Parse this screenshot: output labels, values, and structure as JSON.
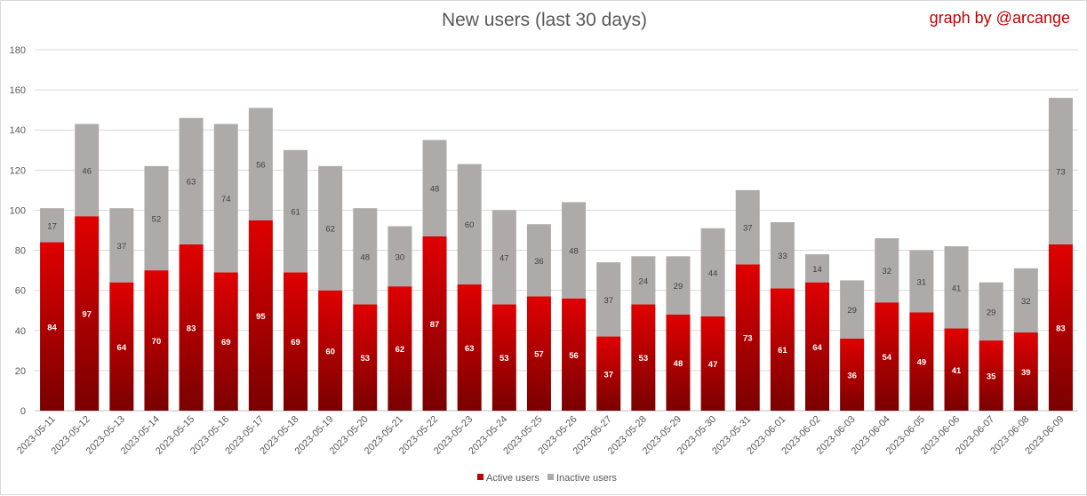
{
  "chart_data": {
    "type": "bar",
    "stacked": true,
    "title": "New users (last 30 days)",
    "credit": "graph by @arcange",
    "xlabel": "",
    "ylabel": "",
    "ylim": [
      0,
      180
    ],
    "yticks": [
      0,
      20,
      40,
      60,
      80,
      100,
      120,
      140,
      160,
      180
    ],
    "grid": true,
    "legend_position": "bottom",
    "categories": [
      "2023-05-11",
      "2023-05-12",
      "2023-05-13",
      "2023-05-14",
      "2023-05-15",
      "2023-05-16",
      "2023-05-17",
      "2023-05-18",
      "2023-05-19",
      "2023-05-20",
      "2023-05-21",
      "2023-05-22",
      "2023-05-23",
      "2023-05-24",
      "2023-05-25",
      "2023-05-26",
      "2023-05-27",
      "2023-05-28",
      "2023-05-29",
      "2023-05-30",
      "2023-05-31",
      "2023-06-01",
      "2023-06-02",
      "2023-06-03",
      "2023-06-04",
      "2023-06-05",
      "2023-06-06",
      "2023-06-07",
      "2023-06-08",
      "2023-06-09"
    ],
    "series": [
      {
        "name": "Active users",
        "color_top": "#e00000",
        "color_bottom": "#7a0000",
        "values": [
          84,
          97,
          64,
          70,
          83,
          69,
          95,
          69,
          60,
          53,
          62,
          87,
          63,
          53,
          57,
          56,
          37,
          53,
          48,
          47,
          73,
          61,
          64,
          36,
          54,
          49,
          41,
          35,
          39,
          83
        ]
      },
      {
        "name": "Inactive users",
        "color": "#aeaaaa",
        "values": [
          17,
          46,
          37,
          52,
          63,
          74,
          56,
          61,
          62,
          48,
          30,
          48,
          60,
          47,
          36,
          48,
          37,
          24,
          29,
          44,
          37,
          33,
          14,
          29,
          32,
          31,
          41,
          29,
          32,
          73
        ]
      }
    ]
  }
}
